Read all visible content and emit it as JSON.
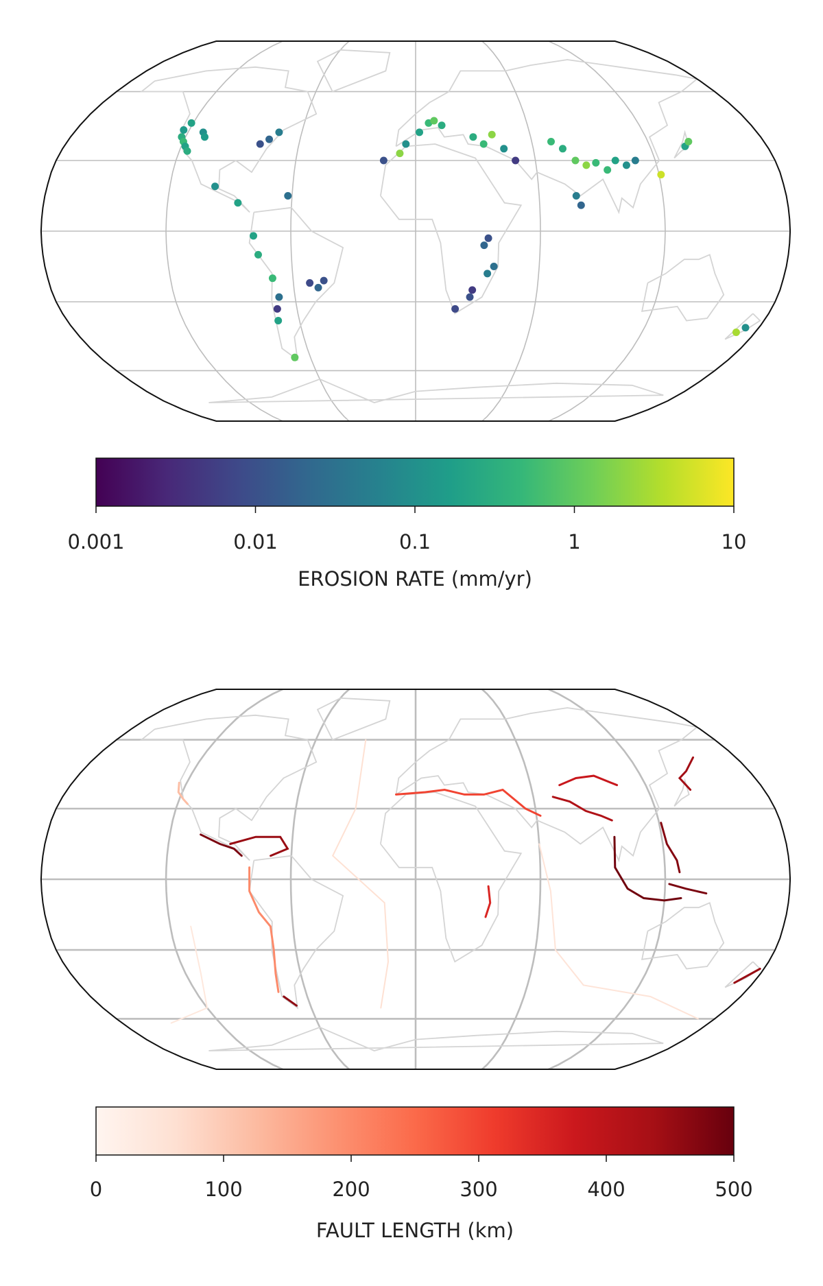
{
  "maps": [
    {
      "colorbar": {
        "label": "EROSION RATE (mm/yr)",
        "colormap": "viridis",
        "scale": "log",
        "lim": [
          0.001,
          10
        ],
        "ticks": [
          0.001,
          0.01,
          0.1,
          1,
          10
        ]
      },
      "points": [
        [
          -122,
          40,
          0.3
        ],
        [
          -120,
          38,
          0.5
        ],
        [
          -118,
          36,
          0.2
        ],
        [
          -116,
          34,
          0.3
        ],
        [
          -123,
          43,
          0.15
        ],
        [
          -121,
          46,
          0.2
        ],
        [
          -112,
          42,
          0.1
        ],
        [
          -110,
          40,
          0.15
        ],
        [
          -80,
          37,
          0.01
        ],
        [
          -76,
          39,
          0.02
        ],
        [
          -72,
          42,
          0.05
        ],
        [
          -98,
          19,
          0.1
        ],
        [
          -86,
          12,
          0.2
        ],
        [
          -62,
          15,
          0.03
        ],
        [
          -78,
          -2,
          0.2
        ],
        [
          -76,
          -10,
          0.3
        ],
        [
          -70,
          -20,
          0.5
        ],
        [
          -68,
          -28,
          0.03
        ],
        [
          -70,
          -33,
          0.005
        ],
        [
          -71,
          -38,
          0.2
        ],
        [
          -69,
          -54,
          1
        ],
        [
          -52,
          -22,
          0.008
        ],
        [
          -45,
          -21,
          0.01
        ],
        [
          -48,
          -24,
          0.02
        ],
        [
          7,
          46,
          0.5
        ],
        [
          10,
          47,
          1
        ],
        [
          14,
          45,
          0.3
        ],
        [
          2,
          42,
          0.2
        ],
        [
          -5,
          37,
          0.1
        ],
        [
          -16,
          30,
          0.01
        ],
        [
          -8,
          33,
          2
        ],
        [
          30,
          40,
          0.3
        ],
        [
          40,
          41,
          2
        ],
        [
          35,
          37,
          0.5
        ],
        [
          45,
          35,
          0.1
        ],
        [
          50,
          30,
          0.005
        ],
        [
          35,
          -3,
          0.01
        ],
        [
          33,
          -6,
          0.02
        ],
        [
          28,
          -25,
          0.005
        ],
        [
          27,
          -28,
          0.01
        ],
        [
          20,
          -33,
          0.008
        ],
        [
          35,
          -18,
          0.05
        ],
        [
          38,
          -15,
          0.03
        ],
        [
          75,
          35,
          0.3
        ],
        [
          70,
          38,
          0.5
        ],
        [
          80,
          30,
          1
        ],
        [
          85,
          28,
          2
        ],
        [
          90,
          29,
          0.5
        ],
        [
          95,
          26,
          0.5
        ],
        [
          100,
          30,
          0.2
        ],
        [
          105,
          28,
          0.1
        ],
        [
          110,
          30,
          0.05
        ],
        [
          78,
          15,
          0.05
        ],
        [
          80,
          11,
          0.02
        ],
        [
          121,
          24,
          5
        ],
        [
          138,
          36,
          0.2
        ],
        [
          141,
          38,
          1
        ],
        [
          170,
          -43,
          3
        ],
        [
          173,
          -41,
          0.1
        ]
      ]
    },
    {
      "colorbar": {
        "label": "FAULT LENGTH (km)",
        "colormap": "reds",
        "scale": "linear",
        "lim": [
          0,
          500
        ],
        "ticks": [
          0,
          100,
          200,
          300,
          400,
          500
        ]
      },
      "faults": [
        {
          "length": 120,
          "path": [
            [
              -124,
              41
            ],
            [
              -122,
              37
            ],
            [
              -118,
              34
            ],
            [
              -115,
              32
            ]
          ]
        },
        {
          "length": 480,
          "path": [
            [
              -105,
              19
            ],
            [
              -95,
              15
            ],
            [
              -88,
              13
            ],
            [
              -84,
              10
            ]
          ]
        },
        {
          "length": 450,
          "path": [
            [
              -90,
              15
            ],
            [
              -78,
              18
            ],
            [
              -66,
              18
            ],
            [
              -62,
              13
            ],
            [
              -70,
              10
            ]
          ]
        },
        {
          "length": 200,
          "path": [
            [
              -80,
              5
            ],
            [
              -80,
              -5
            ],
            [
              -76,
              -14
            ],
            [
              -71,
              -20
            ],
            [
              -71,
              -30
            ],
            [
              -73,
              -40
            ],
            [
              -75,
              -48
            ]
          ]
        },
        {
          "length": 460,
          "path": [
            [
              -73,
              -50
            ],
            [
              -68,
              -54
            ]
          ]
        },
        {
          "length": 300,
          "path": [
            [
              -10,
              36
            ],
            [
              5,
              37
            ],
            [
              15,
              38
            ],
            [
              25,
              36
            ],
            [
              35,
              36
            ],
            [
              45,
              38
            ],
            [
              55,
              30
            ],
            [
              62,
              27
            ]
          ]
        },
        {
          "length": 420,
          "path": [
            [
              70,
              35
            ],
            [
              78,
              33
            ],
            [
              85,
              29
            ],
            [
              92,
              27
            ],
            [
              97,
              25
            ]
          ]
        },
        {
          "length": 380,
          "path": [
            [
              75,
              40
            ],
            [
              85,
              43
            ],
            [
              95,
              44
            ],
            [
              105,
              40
            ]
          ]
        },
        {
          "length": 490,
          "path": [
            [
              97,
              18
            ],
            [
              96,
              5
            ],
            [
              102,
              -4
            ],
            [
              110,
              -8
            ],
            [
              120,
              -9
            ],
            [
              128,
              -8
            ]
          ]
        },
        {
          "length": 470,
          "path": [
            [
              121,
              24
            ],
            [
              122,
              15
            ],
            [
              126,
              8
            ],
            [
              127,
              3
            ]
          ]
        },
        {
          "length": 480,
          "path": [
            [
              122,
              -2
            ],
            [
              130,
              -4
            ],
            [
              140,
              -6
            ]
          ]
        },
        {
          "length": 440,
          "path": [
            [
              142,
              38
            ],
            [
              140,
              43
            ],
            [
              146,
              46
            ],
            [
              156,
              52
            ]
          ]
        },
        {
          "length": 350,
          "path": [
            [
              35,
              -3
            ],
            [
              36,
              -10
            ],
            [
              34,
              -16
            ]
          ]
        },
        {
          "length": 60,
          "path": [
            [
              -30,
              60
            ],
            [
              -30,
              30
            ],
            [
              -40,
              10
            ],
            [
              -15,
              -10
            ],
            [
              -14,
              -35
            ],
            [
              -20,
              -55
            ]
          ]
        },
        {
          "length": 50,
          "path": [
            [
              60,
              15
            ],
            [
              65,
              -5
            ],
            [
              70,
              -30
            ],
            [
              90,
              -45
            ],
            [
              130,
              -50
            ],
            [
              170,
              -60
            ]
          ]
        },
        {
          "length": 40,
          "path": [
            [
              -110,
              -20
            ],
            [
              -112,
              -40
            ],
            [
              -120,
              -55
            ],
            [
              -150,
              -62
            ]
          ]
        },
        {
          "length": 450,
          "path": [
            [
              170,
              -44
            ],
            [
              178,
              -38
            ]
          ]
        }
      ]
    }
  ]
}
